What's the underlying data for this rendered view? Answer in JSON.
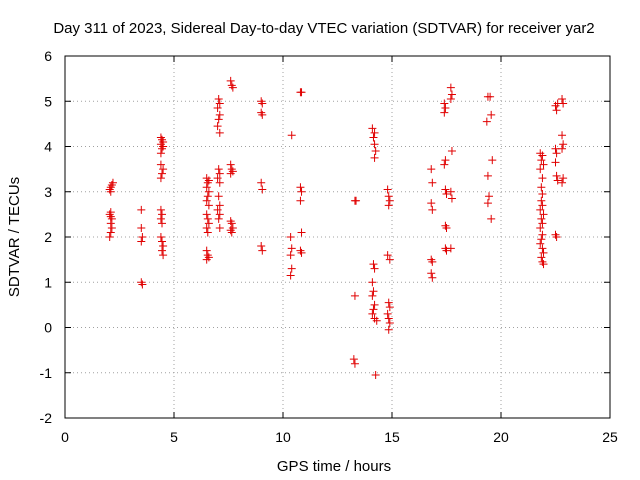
{
  "chart_data": {
    "type": "scatter",
    "title": "Day 311 of 2023, Sidereal Day-to-day VTEC variation (SDTVAR) for receiver yar2",
    "xlabel": "GPS time / hours",
    "ylabel": "SDTVAR / TECUs",
    "xlim": [
      0,
      25
    ],
    "ylim": [
      -2,
      6
    ],
    "xticks": [
      "0",
      "5",
      "10",
      "15",
      "20",
      "25"
    ],
    "yticks": [
      "-2",
      "-1",
      "0",
      "1",
      "2",
      "3",
      "4",
      "5",
      "6"
    ],
    "grid": true,
    "marker": "plus",
    "color": "#e00000",
    "series": [
      {
        "name": "SDTVAR",
        "points": [
          [
            2.05,
            3.05
          ],
          [
            2.1,
            3.1
          ],
          [
            2.15,
            3.15
          ],
          [
            2.2,
            3.2
          ],
          [
            2.1,
            3.0
          ],
          [
            2.05,
            2.5
          ],
          [
            2.1,
            2.45
          ],
          [
            2.15,
            2.4
          ],
          [
            2.1,
            2.3
          ],
          [
            2.15,
            2.2
          ],
          [
            2.1,
            2.1
          ],
          [
            2.05,
            2.0
          ],
          [
            2.1,
            2.55
          ],
          [
            3.5,
            2.6
          ],
          [
            3.5,
            2.2
          ],
          [
            3.55,
            2.0
          ],
          [
            3.5,
            1.9
          ],
          [
            3.5,
            1.0
          ],
          [
            3.55,
            0.95
          ],
          [
            4.4,
            4.2
          ],
          [
            4.45,
            4.15
          ],
          [
            4.5,
            4.1
          ],
          [
            4.4,
            4.05
          ],
          [
            4.5,
            4.0
          ],
          [
            4.45,
            3.95
          ],
          [
            4.4,
            3.85
          ],
          [
            4.4,
            3.6
          ],
          [
            4.5,
            3.5
          ],
          [
            4.45,
            3.4
          ],
          [
            4.4,
            3.3
          ],
          [
            4.4,
            2.6
          ],
          [
            4.45,
            2.5
          ],
          [
            4.4,
            2.4
          ],
          [
            4.45,
            2.3
          ],
          [
            4.4,
            2.0
          ],
          [
            4.45,
            1.9
          ],
          [
            4.5,
            1.8
          ],
          [
            4.45,
            1.7
          ],
          [
            4.5,
            1.6
          ],
          [
            6.5,
            3.3
          ],
          [
            6.6,
            3.25
          ],
          [
            6.55,
            3.2
          ],
          [
            6.5,
            3.1
          ],
          [
            6.6,
            3.0
          ],
          [
            6.55,
            2.9
          ],
          [
            6.5,
            2.8
          ],
          [
            6.6,
            2.7
          ],
          [
            6.5,
            2.5
          ],
          [
            6.55,
            2.4
          ],
          [
            6.6,
            2.3
          ],
          [
            6.5,
            2.2
          ],
          [
            6.55,
            2.1
          ],
          [
            6.5,
            1.7
          ],
          [
            6.55,
            1.6
          ],
          [
            6.6,
            1.55
          ],
          [
            6.5,
            1.5
          ],
          [
            7.05,
            5.05
          ],
          [
            7.1,
            4.95
          ],
          [
            7.0,
            4.85
          ],
          [
            7.1,
            4.7
          ],
          [
            7.05,
            4.6
          ],
          [
            7.0,
            4.45
          ],
          [
            7.1,
            4.3
          ],
          [
            7.05,
            3.5
          ],
          [
            7.1,
            3.4
          ],
          [
            7.0,
            3.3
          ],
          [
            7.1,
            3.2
          ],
          [
            7.05,
            2.9
          ],
          [
            7.1,
            2.7
          ],
          [
            7.0,
            2.6
          ],
          [
            7.1,
            2.5
          ],
          [
            7.05,
            2.4
          ],
          [
            7.1,
            2.2
          ],
          [
            7.6,
            5.45
          ],
          [
            7.65,
            5.35
          ],
          [
            7.7,
            5.3
          ],
          [
            7.6,
            3.6
          ],
          [
            7.65,
            3.5
          ],
          [
            7.7,
            3.45
          ],
          [
            7.6,
            3.4
          ],
          [
            7.6,
            2.35
          ],
          [
            7.65,
            2.3
          ],
          [
            7.7,
            2.2
          ],
          [
            7.6,
            2.15
          ],
          [
            7.65,
            2.1
          ],
          [
            9.0,
            5.0
          ],
          [
            9.05,
            4.95
          ],
          [
            9.0,
            4.75
          ],
          [
            9.05,
            4.7
          ],
          [
            9.0,
            3.2
          ],
          [
            9.05,
            3.05
          ],
          [
            9.0,
            1.8
          ],
          [
            9.05,
            1.7
          ],
          [
            10.4,
            4.25
          ],
          [
            10.35,
            2.0
          ],
          [
            10.4,
            1.75
          ],
          [
            10.35,
            1.6
          ],
          [
            10.4,
            1.3
          ],
          [
            10.35,
            1.15
          ],
          [
            10.8,
            5.2
          ],
          [
            10.85,
            5.2
          ],
          [
            10.8,
            3.1
          ],
          [
            10.85,
            3.0
          ],
          [
            10.8,
            2.8
          ],
          [
            10.85,
            2.1
          ],
          [
            10.8,
            1.7
          ],
          [
            10.85,
            1.65
          ],
          [
            13.3,
            2.8
          ],
          [
            13.35,
            2.8
          ],
          [
            13.3,
            0.7
          ],
          [
            13.25,
            -0.7
          ],
          [
            13.3,
            -0.8
          ],
          [
            14.1,
            4.4
          ],
          [
            14.2,
            4.3
          ],
          [
            14.15,
            4.2
          ],
          [
            14.2,
            4.05
          ],
          [
            14.25,
            3.9
          ],
          [
            14.2,
            3.75
          ],
          [
            14.15,
            1.4
          ],
          [
            14.2,
            1.3
          ],
          [
            14.1,
            1.0
          ],
          [
            14.15,
            0.8
          ],
          [
            14.1,
            0.7
          ],
          [
            14.2,
            0.5
          ],
          [
            14.15,
            0.4
          ],
          [
            14.1,
            0.3
          ],
          [
            14.2,
            0.2
          ],
          [
            14.3,
            0.15
          ],
          [
            14.25,
            -1.05
          ],
          [
            14.8,
            3.05
          ],
          [
            14.85,
            2.9
          ],
          [
            14.9,
            2.8
          ],
          [
            14.85,
            2.7
          ],
          [
            14.8,
            1.6
          ],
          [
            14.9,
            1.5
          ],
          [
            14.85,
            0.55
          ],
          [
            14.9,
            0.45
          ],
          [
            14.8,
            0.3
          ],
          [
            14.85,
            0.2
          ],
          [
            14.9,
            0.1
          ],
          [
            14.85,
            -0.05
          ],
          [
            16.8,
            3.5
          ],
          [
            16.85,
            3.2
          ],
          [
            16.8,
            2.75
          ],
          [
            16.85,
            2.6
          ],
          [
            16.8,
            1.5
          ],
          [
            16.85,
            1.45
          ],
          [
            16.8,
            1.2
          ],
          [
            16.85,
            1.1
          ],
          [
            17.4,
            4.95
          ],
          [
            17.45,
            4.85
          ],
          [
            17.4,
            4.75
          ],
          [
            17.45,
            3.7
          ],
          [
            17.4,
            3.6
          ],
          [
            17.45,
            3.05
          ],
          [
            17.5,
            2.95
          ],
          [
            17.45,
            2.25
          ],
          [
            17.5,
            2.2
          ],
          [
            17.45,
            1.75
          ],
          [
            17.5,
            1.7
          ],
          [
            17.7,
            5.3
          ],
          [
            17.75,
            5.15
          ],
          [
            17.7,
            5.05
          ],
          [
            17.75,
            3.9
          ],
          [
            17.7,
            3.0
          ],
          [
            17.75,
            2.85
          ],
          [
            17.7,
            1.75
          ],
          [
            19.4,
            5.1
          ],
          [
            19.5,
            5.1
          ],
          [
            19.35,
            4.55
          ],
          [
            19.55,
            4.7
          ],
          [
            19.4,
            3.35
          ],
          [
            19.45,
            2.9
          ],
          [
            19.4,
            2.75
          ],
          [
            19.6,
            3.7
          ],
          [
            19.55,
            2.4
          ],
          [
            21.8,
            3.85
          ],
          [
            21.9,
            3.8
          ],
          [
            21.85,
            3.7
          ],
          [
            21.95,
            3.6
          ],
          [
            21.8,
            3.5
          ],
          [
            21.9,
            3.3
          ],
          [
            21.85,
            3.1
          ],
          [
            21.9,
            2.95
          ],
          [
            21.85,
            2.8
          ],
          [
            21.9,
            2.7
          ],
          [
            21.8,
            2.6
          ],
          [
            21.95,
            2.5
          ],
          [
            21.85,
            2.4
          ],
          [
            21.9,
            2.3
          ],
          [
            21.8,
            2.2
          ],
          [
            21.9,
            2.05
          ],
          [
            21.85,
            1.95
          ],
          [
            21.8,
            1.85
          ],
          [
            21.9,
            1.75
          ],
          [
            21.95,
            1.65
          ],
          [
            21.85,
            1.55
          ],
          [
            21.9,
            1.45
          ],
          [
            21.95,
            1.4
          ],
          [
            22.5,
            4.9
          ],
          [
            22.55,
            4.8
          ],
          [
            22.6,
            4.95
          ],
          [
            22.5,
            3.95
          ],
          [
            22.55,
            3.85
          ],
          [
            22.5,
            3.65
          ],
          [
            22.55,
            3.35
          ],
          [
            22.6,
            3.25
          ],
          [
            22.5,
            2.05
          ],
          [
            22.55,
            2.0
          ],
          [
            22.8,
            5.05
          ],
          [
            22.85,
            4.95
          ],
          [
            22.8,
            4.25
          ],
          [
            22.85,
            4.05
          ],
          [
            22.8,
            3.95
          ],
          [
            22.85,
            3.3
          ],
          [
            22.8,
            3.2
          ]
        ]
      }
    ]
  }
}
